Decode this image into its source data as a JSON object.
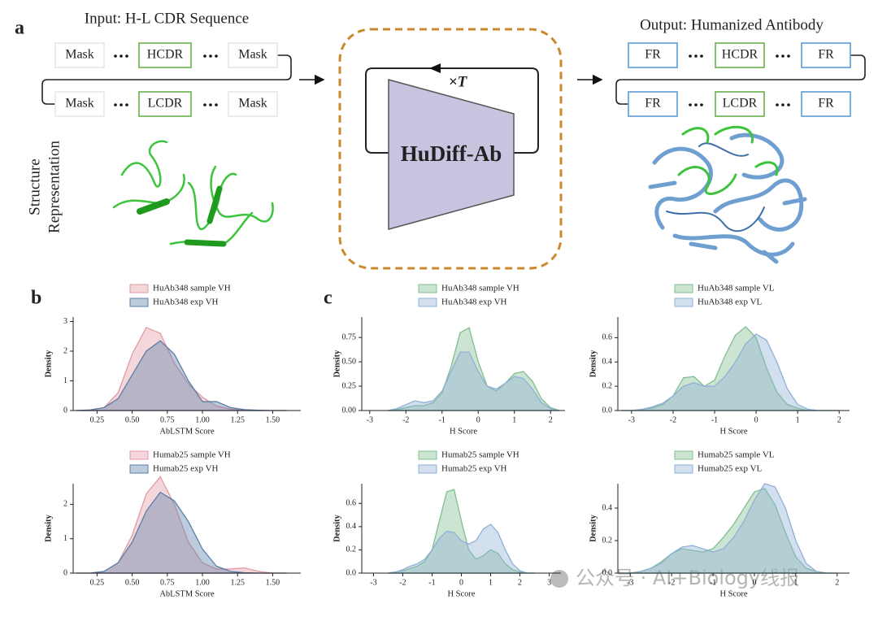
{
  "panel_labels": [
    "a",
    "b",
    "c"
  ],
  "diagram": {
    "input": {
      "title": "Input: H-L CDR Sequence",
      "rows": [
        [
          "Mask",
          "HCDR",
          "Mask"
        ],
        [
          "Mask",
          "LCDR",
          "Mask"
        ]
      ],
      "structure_label": [
        "Structure",
        "Representation"
      ]
    },
    "model": {
      "name": "HuDiff-Ab",
      "loop": "×T"
    },
    "output": {
      "title": "Output: Humanized Antibody",
      "rows": [
        [
          "FR",
          "HCDR",
          "FR"
        ],
        [
          "FR",
          "LCDR",
          "FR"
        ]
      ]
    }
  },
  "watermark": "公众号 · AI+Biology线报",
  "chart_data": [
    {
      "type": "area",
      "xlabel": "AbLSTM Score",
      "ylabel": "Density",
      "legend": "top",
      "x": [
        0.1,
        0.2,
        0.3,
        0.4,
        0.5,
        0.6,
        0.7,
        0.8,
        0.9,
        1.0,
        1.1,
        1.2,
        1.3,
        1.4,
        1.5,
        1.6
      ],
      "series": [
        {
          "name": "HuAb348 sample VH",
          "color": "#e39aa5",
          "values": [
            0,
            0.01,
            0.1,
            0.6,
            1.9,
            2.8,
            2.6,
            1.6,
            0.9,
            0.45,
            0.15,
            0.05,
            0.01,
            0,
            0,
            0
          ]
        },
        {
          "name": "HuAb348 exp VH",
          "color": "#5a7fa8",
          "values": [
            0,
            0.02,
            0.1,
            0.4,
            1.2,
            2.0,
            2.35,
            1.9,
            1.0,
            0.3,
            0.3,
            0.1,
            0.03,
            0.01,
            0,
            0
          ]
        }
      ],
      "xlim": [
        0.08,
        1.7
      ],
      "ylim": [
        0,
        3.15
      ],
      "xticks": [
        0.25,
        {
          "value": 0.5,
          "label": "0.50"
        },
        0.75,
        {
          "value": 1,
          "label": "1.00"
        },
        1.25,
        {
          "value": 1.5,
          "label": "1.50"
        }
      ],
      "yticks": [
        0,
        1,
        2,
        3
      ]
    },
    {
      "type": "area",
      "xlabel": "AbLSTM Score",
      "ylabel": "Density",
      "legend": "top",
      "x": [
        0.1,
        0.2,
        0.3,
        0.4,
        0.5,
        0.6,
        0.7,
        0.8,
        0.9,
        1.0,
        1.1,
        1.2,
        1.3,
        1.4,
        1.5,
        1.6
      ],
      "series": [
        {
          "name": "Humab25 sample VH",
          "color": "#e39aa5",
          "values": [
            0,
            0,
            0.05,
            0.3,
            1.1,
            2.3,
            2.8,
            2.0,
            0.9,
            0.3,
            0.12,
            0.12,
            0.15,
            0.05,
            0,
            0
          ]
        },
        {
          "name": "Humab25 exp VH",
          "color": "#5a7fa8",
          "values": [
            0,
            0,
            0.05,
            0.3,
            0.9,
            1.8,
            2.35,
            2.1,
            1.5,
            0.7,
            0.2,
            0.05,
            0.01,
            0,
            0,
            0
          ]
        }
      ],
      "xlim": [
        0.08,
        1.7
      ],
      "ylim": [
        0,
        2.6
      ],
      "xticks": [
        0.25,
        {
          "value": 0.5,
          "label": "0.50"
        },
        0.75,
        {
          "value": 1,
          "label": "1.00"
        },
        1.25,
        {
          "value": 1.5,
          "label": "1.50"
        }
      ],
      "yticks": [
        0,
        1,
        2
      ]
    },
    {
      "type": "area",
      "xlabel": "H Score",
      "ylabel": "Density",
      "legend": "top",
      "x": [
        -2.5,
        -2.25,
        -2,
        -1.75,
        -1.5,
        -1.25,
        -1,
        -0.75,
        -0.5,
        -0.25,
        0,
        0.25,
        0.5,
        0.75,
        1,
        1.25,
        1.5,
        1.75,
        2,
        2.25
      ],
      "series": [
        {
          "name": "HuAb348 sample VH",
          "color": "#7fbf8f",
          "values": [
            0,
            0.01,
            0.03,
            0.05,
            0.05,
            0.08,
            0.18,
            0.45,
            0.8,
            0.85,
            0.5,
            0.25,
            0.2,
            0.28,
            0.38,
            0.4,
            0.3,
            0.12,
            0.03,
            0
          ]
        },
        {
          "name": "HuAb348 exp VH",
          "color": "#8fb0d6",
          "values": [
            0,
            0.02,
            0.06,
            0.1,
            0.08,
            0.1,
            0.2,
            0.4,
            0.6,
            0.6,
            0.4,
            0.25,
            0.22,
            0.28,
            0.35,
            0.33,
            0.22,
            0.08,
            0.02,
            0
          ]
        }
      ],
      "xlim": [
        -3.22,
        2.4
      ],
      "ylim": [
        0,
        0.96
      ],
      "xticks": [
        -3,
        -2,
        -1,
        0,
        1,
        2
      ],
      "yticks": [
        {
          "value": 0,
          "label": "0.00"
        },
        0.25,
        {
          "value": 0.5,
          "label": "0.50"
        },
        0.75
      ]
    },
    {
      "type": "area",
      "xlabel": "H Score",
      "ylabel": "Density",
      "legend": "top",
      "x": [
        -3.25,
        -3,
        -2.75,
        -2.5,
        -2.25,
        -2,
        -1.75,
        -1.5,
        -1.25,
        -1,
        -0.75,
        -0.5,
        -0.25,
        0,
        0.25,
        0.5,
        0.75,
        1,
        1.25,
        1.5,
        1.75,
        2
      ],
      "series": [
        {
          "name": "HuAb348 sample VL",
          "color": "#7fbf8f",
          "values": [
            0,
            0,
            0.01,
            0.02,
            0.05,
            0.12,
            0.27,
            0.28,
            0.2,
            0.25,
            0.45,
            0.62,
            0.69,
            0.6,
            0.35,
            0.15,
            0.05,
            0.02,
            0,
            0,
            0,
            0
          ]
        },
        {
          "name": "HuAb348 exp VL",
          "color": "#8fb0d6",
          "values": [
            0,
            0,
            0.01,
            0.03,
            0.06,
            0.12,
            0.2,
            0.23,
            0.2,
            0.2,
            0.28,
            0.4,
            0.55,
            0.63,
            0.58,
            0.4,
            0.18,
            0.05,
            0.01,
            0,
            0,
            0
          ]
        }
      ],
      "xlim": [
        -3.33,
        2.25
      ],
      "ylim": [
        0,
        0.77
      ],
      "xticks": [
        -3,
        -2,
        -1,
        0,
        1,
        2
      ],
      "yticks": [
        {
          "value": 0,
          "label": "0.0"
        },
        0.2,
        0.4,
        0.6
      ]
    },
    {
      "type": "area",
      "xlabel": "H Score",
      "ylabel": "Density",
      "legend": "top",
      "x": [
        -2.5,
        -2.25,
        -2,
        -1.75,
        -1.5,
        -1.25,
        -1,
        -0.75,
        -0.5,
        -0.25,
        0,
        0.25,
        0.5,
        0.75,
        1,
        1.25,
        1.5,
        1.75,
        2,
        2.25,
        2.5
      ],
      "series": [
        {
          "name": "Humab25 sample VH",
          "color": "#7fbf8f",
          "values": [
            0,
            0.01,
            0.02,
            0.04,
            0.06,
            0.1,
            0.2,
            0.45,
            0.7,
            0.72,
            0.45,
            0.2,
            0.12,
            0.15,
            0.2,
            0.17,
            0.08,
            0.03,
            0.01,
            0,
            0
          ]
        },
        {
          "name": "Humab25 exp VH",
          "color": "#8fb0d6",
          "values": [
            0,
            0.01,
            0.03,
            0.06,
            0.08,
            0.12,
            0.2,
            0.3,
            0.36,
            0.35,
            0.28,
            0.25,
            0.28,
            0.38,
            0.42,
            0.35,
            0.2,
            0.08,
            0.02,
            0,
            0
          ]
        }
      ],
      "xlim": [
        -3.4,
        3.4
      ],
      "ylim": [
        0,
        0.77
      ],
      "xticks": [
        -3,
        -2,
        -1,
        0,
        1,
        2,
        3
      ],
      "yticks": [
        {
          "value": 0,
          "label": "0.0"
        },
        0.2,
        0.4,
        0.6
      ]
    },
    {
      "type": "area",
      "xlabel": "H Score",
      "ylabel": "Density",
      "legend": "top",
      "x": [
        -3.25,
        -3,
        -2.75,
        -2.5,
        -2.25,
        -2,
        -1.75,
        -1.5,
        -1.25,
        -1,
        -0.75,
        -0.5,
        -0.25,
        0,
        0.25,
        0.5,
        0.75,
        1,
        1.25,
        1.5,
        1.75,
        2
      ],
      "series": [
        {
          "name": "Humab25 sample VL",
          "color": "#7fbf8f",
          "values": [
            0,
            0,
            0.01,
            0.03,
            0.07,
            0.12,
            0.15,
            0.14,
            0.13,
            0.15,
            0.22,
            0.3,
            0.4,
            0.5,
            0.52,
            0.42,
            0.25,
            0.1,
            0.03,
            0.01,
            0,
            0
          ]
        },
        {
          "name": "Humab25 exp VL",
          "color": "#8fb0d6",
          "values": [
            0,
            0,
            0.01,
            0.03,
            0.06,
            0.12,
            0.16,
            0.17,
            0.15,
            0.13,
            0.15,
            0.22,
            0.32,
            0.45,
            0.55,
            0.53,
            0.4,
            0.2,
            0.06,
            0.01,
            0,
            0
          ]
        }
      ],
      "xlim": [
        -3.3,
        2.3
      ],
      "ylim": [
        0,
        0.55
      ],
      "xticks": [
        -3,
        -2,
        -1,
        0,
        1,
        2
      ],
      "yticks": [
        {
          "value": 0,
          "label": "0.0"
        },
        0.2,
        0.4
      ]
    }
  ]
}
